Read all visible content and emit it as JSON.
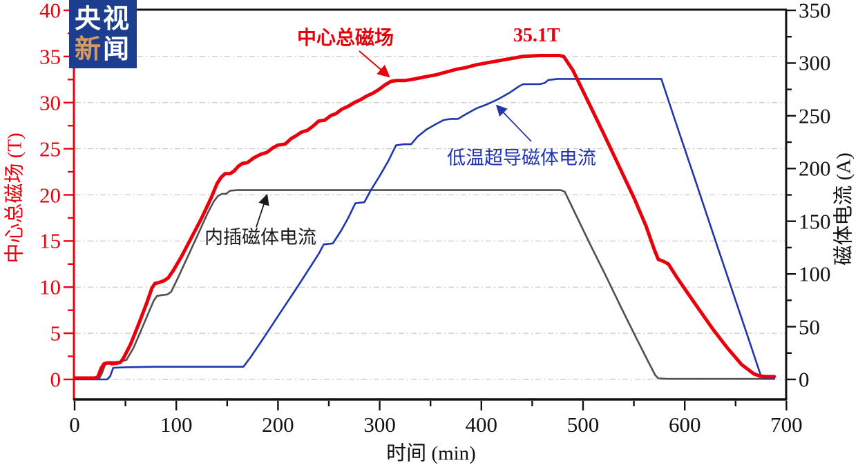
{
  "logo": {
    "row1": "央视",
    "row2_first": "新",
    "row2_second": "闻"
  },
  "annotations": {
    "red_series_label": "中心总磁场",
    "peak_label": "35.1T",
    "blue_series_label": "低温超导磁体电流",
    "gray_series_label": "内插磁体电流"
  },
  "axes": {
    "left": {
      "title": "中心总磁场 (T)",
      "tick_labels": [
        "0",
        "5",
        "10",
        "15",
        "20",
        "25",
        "30",
        "35",
        "40"
      ]
    },
    "right": {
      "title": "磁体电流 (A)",
      "tick_labels": [
        "0",
        "50",
        "100",
        "150",
        "200",
        "250",
        "300",
        "350"
      ]
    },
    "bottom": {
      "title": "时间 (min)",
      "tick_labels": [
        "0",
        "100",
        "200",
        "300",
        "400",
        "500",
        "600",
        "700"
      ]
    }
  },
  "colors": {
    "red": "#e8000c",
    "blue": "#1f35ae",
    "gray": "#4f4f4f",
    "grid": "#c9c9c9",
    "axis_black": "#111111",
    "logo_bg": "#1d3d8f",
    "logo_accent": "#d49a66"
  },
  "chart_data": {
    "type": "line",
    "title": "",
    "xlabel": "时间 (min)",
    "xlim": [
      0,
      700
    ],
    "x_major_step": 100,
    "x_minor_step": 50,
    "grid": "horizontal dashed lines at every 5 T (left axis)",
    "legend_position": "inline arrow annotations",
    "y_left": {
      "label": "中心总磁场 (T)",
      "lim": [
        0,
        40
      ],
      "major_step": 5,
      "minor_step": 2.5,
      "color": "#e8000c"
    },
    "y_right": {
      "label": "磁体电流 (A)",
      "lim": [
        0,
        350
      ],
      "major_step": 50,
      "minor_step": 25,
      "color": "#111111"
    },
    "peak_annotation": {
      "text": "35.1T",
      "series": "中心总磁场",
      "x": 460,
      "y": 35.1
    },
    "series": [
      {
        "name": "中心总磁场",
        "unit": "T",
        "axis": "left",
        "color": "#e8000c",
        "line_width": 5,
        "points": [
          [
            0,
            0.15
          ],
          [
            20,
            0.15
          ],
          [
            23,
            0.3
          ],
          [
            26,
            1.2
          ],
          [
            29,
            1.7
          ],
          [
            33,
            1.8
          ],
          [
            37,
            1.7
          ],
          [
            41,
            1.75
          ],
          [
            45,
            1.85
          ],
          [
            48,
            2.3
          ],
          [
            55,
            3.8
          ],
          [
            63,
            6.0
          ],
          [
            71,
            8.3
          ],
          [
            76,
            9.9
          ],
          [
            79,
            10.4
          ],
          [
            83,
            10.5
          ],
          [
            88,
            10.7
          ],
          [
            92,
            11.0
          ],
          [
            97,
            11.8
          ],
          [
            105,
            13.3
          ],
          [
            115,
            15.4
          ],
          [
            125,
            17.5
          ],
          [
            134,
            19.6
          ],
          [
            140,
            21.2
          ],
          [
            144,
            21.9
          ],
          [
            148,
            22.3
          ],
          [
            153,
            22.3
          ],
          [
            157,
            22.6
          ],
          [
            161,
            23.1
          ],
          [
            165,
            23.4
          ],
          [
            170,
            23.5
          ],
          [
            176,
            24.0
          ],
          [
            183,
            24.4
          ],
          [
            189,
            24.6
          ],
          [
            195,
            25.1
          ],
          [
            200,
            25.4
          ],
          [
            207,
            25.5
          ],
          [
            213,
            26.1
          ],
          [
            219,
            26.5
          ],
          [
            223,
            26.8
          ],
          [
            229,
            27.0
          ],
          [
            235,
            27.5
          ],
          [
            240,
            28.0
          ],
          [
            246,
            28.1
          ],
          [
            252,
            28.6
          ],
          [
            257,
            28.8
          ],
          [
            263,
            29.3
          ],
          [
            269,
            29.6
          ],
          [
            275,
            30.0
          ],
          [
            281,
            30.3
          ],
          [
            287,
            30.7
          ],
          [
            293,
            31.0
          ],
          [
            299,
            31.4
          ],
          [
            305,
            31.9
          ],
          [
            311,
            32.3
          ],
          [
            317,
            32.4
          ],
          [
            325,
            32.4
          ],
          [
            331,
            32.5
          ],
          [
            336,
            32.6
          ],
          [
            345,
            32.8
          ],
          [
            355,
            33.0
          ],
          [
            365,
            33.3
          ],
          [
            375,
            33.6
          ],
          [
            385,
            33.8
          ],
          [
            395,
            34.1
          ],
          [
            405,
            34.3
          ],
          [
            415,
            34.5
          ],
          [
            425,
            34.7
          ],
          [
            433,
            34.85
          ],
          [
            440,
            35.0
          ],
          [
            448,
            35.05
          ],
          [
            458,
            35.1
          ],
          [
            468,
            35.1
          ],
          [
            477,
            35.1
          ],
          [
            481,
            35.0
          ],
          [
            490,
            33.5
          ],
          [
            505,
            30.1
          ],
          [
            520,
            26.7
          ],
          [
            535,
            23.2
          ],
          [
            550,
            19.7
          ],
          [
            562,
            16.6
          ],
          [
            570,
            14.1
          ],
          [
            574,
            13.0
          ],
          [
            579,
            12.8
          ],
          [
            584,
            12.5
          ],
          [
            592,
            11.1
          ],
          [
            602,
            9.5
          ],
          [
            614,
            7.6
          ],
          [
            628,
            5.4
          ],
          [
            642,
            3.4
          ],
          [
            656,
            1.6
          ],
          [
            668,
            0.6
          ],
          [
            674,
            0.35
          ],
          [
            680,
            0.3
          ],
          [
            688,
            0.3
          ]
        ]
      },
      {
        "name": "低温超导磁体电流",
        "unit": "A",
        "axis": "right",
        "color": "#1f35ae",
        "line_width": 2.6,
        "points": [
          [
            0,
            0
          ],
          [
            32,
            0
          ],
          [
            35,
            3
          ],
          [
            38,
            11
          ],
          [
            50,
            11.5
          ],
          [
            80,
            12
          ],
          [
            120,
            12
          ],
          [
            160,
            12
          ],
          [
            166,
            12
          ],
          [
            173,
            21
          ],
          [
            185,
            38
          ],
          [
            200,
            60
          ],
          [
            220,
            89
          ],
          [
            240,
            119
          ],
          [
            245,
            128
          ],
          [
            254,
            129
          ],
          [
            262,
            141
          ],
          [
            269,
            153
          ],
          [
            273,
            161
          ],
          [
            276,
            167
          ],
          [
            285,
            168
          ],
          [
            291,
            179
          ],
          [
            300,
            193
          ],
          [
            309,
            208
          ],
          [
            316,
            222
          ],
          [
            324,
            223
          ],
          [
            331,
            223
          ],
          [
            337,
            230
          ],
          [
            346,
            237
          ],
          [
            355,
            242
          ],
          [
            363,
            246
          ],
          [
            370,
            247
          ],
          [
            377,
            247
          ],
          [
            384,
            251
          ],
          [
            395,
            257
          ],
          [
            406,
            261
          ],
          [
            417,
            266
          ],
          [
            428,
            272
          ],
          [
            437,
            278
          ],
          [
            441,
            280
          ],
          [
            450,
            280
          ],
          [
            457,
            280
          ],
          [
            462,
            281
          ],
          [
            466,
            284
          ],
          [
            475,
            285
          ],
          [
            500,
            285
          ],
          [
            530,
            285
          ],
          [
            560,
            285
          ],
          [
            577,
            285
          ],
          [
            590,
            247
          ],
          [
            610,
            190
          ],
          [
            630,
            132
          ],
          [
            650,
            75
          ],
          [
            665,
            32
          ],
          [
            675,
            3
          ],
          [
            679,
            0.5
          ],
          [
            688,
            0.5
          ]
        ]
      },
      {
        "name": "内插磁体电流",
        "unit": "A",
        "axis": "right",
        "color": "#4f4f4f",
        "line_width": 2.6,
        "points": [
          [
            0,
            0.5
          ],
          [
            24,
            0.5
          ],
          [
            27,
            6
          ],
          [
            30,
            14
          ],
          [
            33,
            16.5
          ],
          [
            40,
            16.5
          ],
          [
            46,
            17
          ],
          [
            51,
            18.5
          ],
          [
            58,
            30
          ],
          [
            66,
            48
          ],
          [
            73,
            64
          ],
          [
            78,
            75
          ],
          [
            81,
            79
          ],
          [
            86,
            80
          ],
          [
            91,
            80.5
          ],
          [
            95,
            83
          ],
          [
            102,
            97
          ],
          [
            112,
            118
          ],
          [
            122,
            139
          ],
          [
            131,
            158
          ],
          [
            137,
            169
          ],
          [
            141,
            174
          ],
          [
            145,
            176
          ],
          [
            149,
            176
          ],
          [
            153,
            179
          ],
          [
            160,
            179.5
          ],
          [
            220,
            179.5
          ],
          [
            300,
            179.5
          ],
          [
            380,
            179.5
          ],
          [
            450,
            179.5
          ],
          [
            478,
            179.5
          ],
          [
            482,
            178
          ],
          [
            492,
            158
          ],
          [
            507,
            128
          ],
          [
            522,
            99
          ],
          [
            537,
            69
          ],
          [
            552,
            40
          ],
          [
            564,
            17
          ],
          [
            571,
            4
          ],
          [
            574,
            1
          ],
          [
            582,
            0.5
          ],
          [
            620,
            0.5
          ],
          [
            660,
            0.5
          ],
          [
            688,
            0.5
          ]
        ]
      }
    ]
  }
}
